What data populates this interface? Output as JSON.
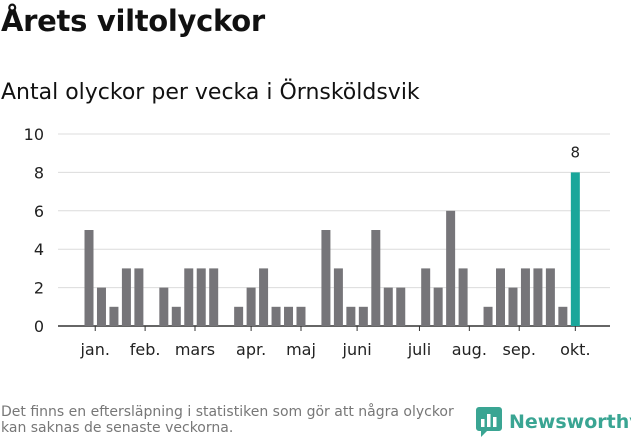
{
  "title": "Årets viltolyckor",
  "subtitle": "Antal olyckor per vecka i Örnsköldsvik",
  "footnote": "Det finns en eftersläpning i statistiken som gör att några olyckor kan saknas de senaste veckorna.",
  "brand": {
    "name": "Newsworthy",
    "icon": "newsworthy-logo-icon"
  },
  "colors": {
    "bar": "#767579",
    "highlight": "#1aa69a",
    "grid": "#dcdcdc",
    "axis": "#333333",
    "text": "#222222"
  },
  "chart_data": {
    "type": "bar",
    "title": "Antal olyckor per vecka i Örnsköldsvik",
    "xlabel": "",
    "ylabel": "",
    "ylim": [
      0,
      10
    ],
    "yticks": [
      0,
      2,
      4,
      6,
      8,
      10
    ],
    "grid": true,
    "values": [
      5,
      2,
      1,
      3,
      3,
      0,
      2,
      1,
      3,
      3,
      3,
      0,
      1,
      2,
      3,
      1,
      1,
      1,
      0,
      5,
      3,
      1,
      1,
      5,
      2,
      2,
      0,
      3,
      2,
      6,
      3,
      0,
      1,
      3,
      2,
      3,
      3,
      3,
      1,
      8
    ],
    "highlight_index": 39,
    "highlight_label": "8",
    "month_labels": [
      {
        "label": "jan.",
        "index": 0.5
      },
      {
        "label": "feb.",
        "index": 4.5
      },
      {
        "label": "mars",
        "index": 8.5
      },
      {
        "label": "apr.",
        "index": 13
      },
      {
        "label": "maj",
        "index": 17
      },
      {
        "label": "juni",
        "index": 21.5
      },
      {
        "label": "juli",
        "index": 26.5
      },
      {
        "label": "aug.",
        "index": 30.5
      },
      {
        "label": "sep.",
        "index": 34.5
      },
      {
        "label": "okt.",
        "index": 39
      }
    ]
  }
}
